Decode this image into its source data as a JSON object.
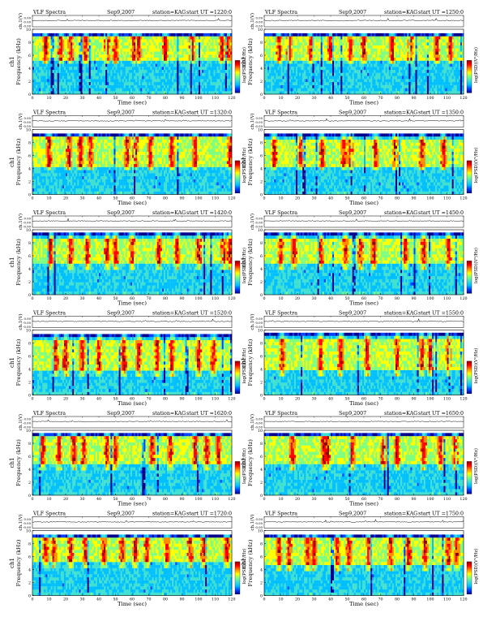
{
  "chart_data": {
    "type": "heatmap",
    "common": {
      "header_left": "VLF Spectra",
      "date": "Sep9,2007",
      "station": "station=KAG",
      "ch_label": "ch.1(V)",
      "ch_ticks": [
        "0.00",
        "-0.00",
        "-0.00"
      ],
      "channel_label": "ch1",
      "ylabel": "Frequency (kHz)",
      "xlabel": "Time (sec)",
      "colorbar_label": "log(PSD)(V²/Hz)",
      "xlim": [
        0,
        120
      ],
      "ylim": [
        0,
        10
      ],
      "x_ticks": [
        0,
        10,
        20,
        30,
        40,
        50,
        60,
        70,
        80,
        90,
        100,
        110,
        120
      ],
      "y_ticks": [
        0,
        2,
        4,
        6,
        8,
        10
      ],
      "colormap": [
        "#00008b",
        "#0040ff",
        "#00bfff",
        "#40e0d0",
        "#7fff7f",
        "#ffff00",
        "#ff8c00",
        "#ff0000",
        "#8b0000"
      ]
    },
    "panels": [
      {
        "start_ut": "start UT =1220:0",
        "top_bin": 9.4,
        "active_band": [
          5.4,
          9.2
        ],
        "bursts": [
          8,
          17,
          23,
          32,
          45,
          50,
          61,
          64,
          80,
          96,
          114,
          118
        ]
      },
      {
        "start_ut": "start UT =1250:0",
        "top_bin": 9.4,
        "active_band": [
          5.4,
          9.2
        ],
        "bursts": [
          9,
          15,
          28,
          40,
          52,
          60,
          77,
          88,
          104,
          112
        ]
      },
      {
        "start_ut": "start UT =1320:0",
        "top_bin": 9.4,
        "active_band": [
          4.4,
          8.8
        ],
        "bursts": [
          10,
          22,
          29,
          35,
          57,
          62,
          71,
          84,
          98,
          119
        ]
      },
      {
        "start_ut": "start UT =1350:0",
        "top_bin": 9.4,
        "active_band": [
          4.4,
          8.6
        ],
        "bursts": [
          6,
          22,
          35,
          48,
          52,
          67,
          79,
          95,
          108
        ]
      },
      {
        "start_ut": "start UT =1420:0",
        "top_bin": 9.6,
        "active_band": [
          4.6,
          8.6
        ],
        "bursts": [
          11,
          23,
          33,
          45,
          50,
          60,
          76,
          87,
          100,
          115,
          119
        ]
      },
      {
        "start_ut": "start UT =1450:0",
        "top_bin": 9.6,
        "active_band": [
          4.8,
          8.6
        ],
        "bursts": [
          10,
          18,
          34,
          49,
          58,
          66,
          85,
          96,
          111
        ]
      },
      {
        "start_ut": "start UT =1520:0",
        "top_bin": 9.4,
        "active_band": [
          3.6,
          8.4
        ],
        "bursts": [
          14,
          20,
          30,
          40,
          55,
          64,
          75,
          84,
          100,
          109
        ]
      },
      {
        "start_ut": "start UT =1550:0",
        "top_bin": 9.6,
        "active_band": [
          3.8,
          8.6
        ],
        "bursts": [
          11,
          34,
          46,
          62,
          80,
          95,
          100,
          111
        ]
      },
      {
        "start_ut": "start UT =1620:0",
        "top_bin": 9.6,
        "active_band": [
          4.6,
          9.0
        ],
        "bursts": [
          6,
          16,
          25,
          31,
          45,
          50,
          72,
          83,
          98,
          105,
          112
        ]
      },
      {
        "start_ut": "start UT =1650:0",
        "top_bin": 9.6,
        "active_band": [
          4.8,
          9.0
        ],
        "bursts": [
          17,
          36,
          38,
          53,
          72,
          80,
          96,
          106,
          115
        ]
      },
      {
        "start_ut": "start UT =1720:0",
        "top_bin": 9.4,
        "active_band": [
          5.2,
          9.0
        ],
        "bursts": [
          8,
          13,
          23,
          32,
          43,
          54,
          62,
          69,
          81,
          95,
          103,
          117
        ]
      },
      {
        "start_ut": "start UT =1750:0",
        "top_bin": 9.4,
        "active_band": [
          4.6,
          8.8
        ],
        "bursts": [
          9,
          15,
          26,
          30,
          44,
          51,
          63,
          76,
          87,
          97,
          111,
          116
        ]
      }
    ]
  }
}
